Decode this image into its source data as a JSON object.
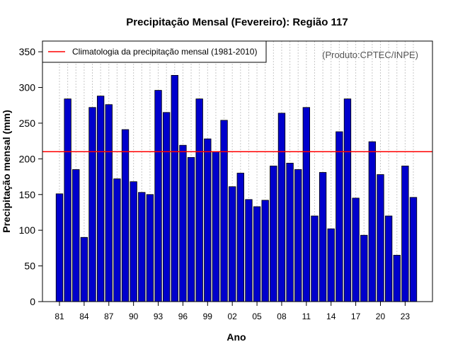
{
  "chart_data": {
    "type": "bar",
    "title": "Precipitação Mensal (Fevereiro): Região 117",
    "xlabel": "Ano",
    "ylabel": "Precipitação mensal (mm)",
    "ylim": [
      0,
      365
    ],
    "yticks": [
      0,
      50,
      100,
      150,
      200,
      250,
      300,
      350
    ],
    "xtick_labels": [
      "81",
      "84",
      "87",
      "90",
      "93",
      "96",
      "99",
      "02",
      "05",
      "08",
      "11",
      "14",
      "17",
      "20",
      "23"
    ],
    "categories": [
      "1981",
      "1982",
      "1983",
      "1984",
      "1985",
      "1986",
      "1987",
      "1988",
      "1989",
      "1990",
      "1991",
      "1992",
      "1993",
      "1994",
      "1995",
      "1996",
      "1997",
      "1998",
      "1999",
      "2000",
      "2001",
      "2002",
      "2003",
      "2004",
      "2005",
      "2006",
      "2007",
      "2008",
      "2009",
      "2010",
      "2011",
      "2012",
      "2013",
      "2014",
      "2015",
      "2016",
      "2017",
      "2018",
      "2019",
      "2020",
      "2021",
      "2022",
      "2023",
      "2024"
    ],
    "values": [
      151,
      284,
      185,
      90,
      272,
      288,
      276,
      172,
      241,
      168,
      153,
      150,
      296,
      265,
      317,
      219,
      202,
      284,
      228,
      210,
      254,
      161,
      180,
      143,
      133,
      142,
      190,
      264,
      194,
      185,
      272,
      120,
      181,
      102,
      238,
      284,
      145,
      93,
      224,
      178,
      120,
      65,
      190,
      146
    ],
    "bar_color": "#0000cc",
    "climatology": {
      "value": 210,
      "label": "Climatologia da precipitação mensal (1981-2010)",
      "color": "#ff0000"
    },
    "legend_position": "top-left",
    "grid": "vertical-dotted",
    "credit": "(Produto:CPTEC/INPE)"
  }
}
